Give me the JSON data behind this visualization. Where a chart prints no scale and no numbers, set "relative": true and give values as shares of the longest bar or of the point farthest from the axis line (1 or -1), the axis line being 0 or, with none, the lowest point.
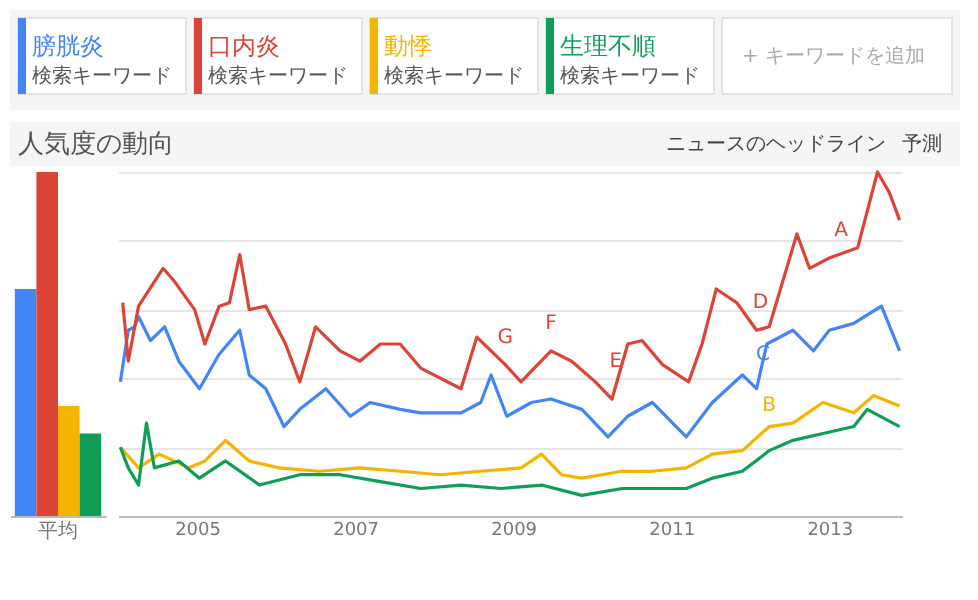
{
  "chart_data": [
    {
      "type": "bar",
      "relative": true,
      "categories": [
        "平均"
      ],
      "series": [
        {
          "color": "#4285f4",
          "values": [
            0.66
          ]
        },
        {
          "color": "#db4437",
          "values": [
            1
          ]
        },
        {
          "color": "#f4b400",
          "values": [
            0.32
          ]
        },
        {
          "color": "#0f9d58",
          "values": [
            0.24
          ]
        }
      ]
    },
    {
      "type": "line",
      "relative": true,
      "title": "人気度の動向",
      "legend": "top",
      "grid": "y",
      "xlim": [
        2004.0,
        2013.92
      ],
      "xticks": [
        2005,
        2007,
        2009,
        2011,
        2013
      ],
      "series": [
        {
          "name": "膀胱炎",
          "color": "#4285f4",
          "x": [
            2004.03,
            2004.13,
            2004.21,
            2004.26,
            2004.41,
            2004.59,
            2004.77,
            2005.03,
            2005.28,
            2005.54,
            2005.66,
            2005.87,
            2006.1,
            2006.3,
            2006.63,
            2006.94,
            2007.19,
            2007.57,
            2007.83,
            2008.34,
            2008.59,
            2008.72,
            2008.92,
            2009.23,
            2009.48,
            2009.87,
            2010.2,
            2010.45,
            2010.76,
            2011.19,
            2011.52,
            2011.9,
            2012.08,
            2012.21,
            2012.54,
            2012.8,
            2013.0,
            2013.31,
            2013.66,
            2013.89
          ],
          "values": [
            0.39,
            0.54,
            0.55,
            0.58,
            0.51,
            0.55,
            0.45,
            0.37,
            0.47,
            0.54,
            0.41,
            0.37,
            0.26,
            0.31,
            0.37,
            0.29,
            0.33,
            0.31,
            0.3,
            0.3,
            0.33,
            0.41,
            0.29,
            0.33,
            0.34,
            0.31,
            0.23,
            0.29,
            0.33,
            0.23,
            0.33,
            0.41,
            0.37,
            0.5,
            0.54,
            0.48,
            0.54,
            0.56,
            0.61,
            0.48
          ]
        },
        {
          "name": "口内炎",
          "color": "#db4437",
          "x": [
            2004.06,
            2004.13,
            2004.26,
            2004.57,
            2004.72,
            2004.97,
            2005.1,
            2005.28,
            2005.41,
            2005.54,
            2005.66,
            2005.87,
            2006.12,
            2006.3,
            2006.5,
            2006.81,
            2007.06,
            2007.32,
            2007.57,
            2007.83,
            2008.34,
            2008.54,
            2008.9,
            2009.1,
            2009.31,
            2009.48,
            2009.74,
            2010.04,
            2010.25,
            2010.45,
            2010.63,
            2010.89,
            2011.22,
            2011.39,
            2011.57,
            2011.83,
            2012.08,
            2012.24,
            2012.59,
            2012.75,
            2013.0,
            2013.36,
            2013.61,
            2013.76,
            2013.89
          ],
          "values": [
            0.62,
            0.45,
            0.61,
            0.72,
            0.68,
            0.6,
            0.5,
            0.61,
            0.62,
            0.76,
            0.6,
            0.61,
            0.5,
            0.39,
            0.55,
            0.48,
            0.45,
            0.5,
            0.5,
            0.43,
            0.37,
            0.52,
            0.44,
            0.39,
            0.44,
            0.48,
            0.45,
            0.39,
            0.34,
            0.5,
            0.51,
            0.44,
            0.39,
            0.5,
            0.66,
            0.62,
            0.54,
            0.55,
            0.82,
            0.72,
            0.75,
            0.78,
            1.0,
            0.94,
            0.86
          ]
        },
        {
          "name": "動悸",
          "color": "#f4b400",
          "x": [
            2004.03,
            2004.26,
            2004.52,
            2004.9,
            2005.1,
            2005.36,
            2005.66,
            2006.04,
            2006.55,
            2007.06,
            2007.57,
            2008.08,
            2008.59,
            2009.1,
            2009.36,
            2009.61,
            2009.87,
            2010.38,
            2010.76,
            2011.19,
            2011.52,
            2011.9,
            2012.24,
            2012.54,
            2012.92,
            2013.31,
            2013.56,
            2013.89
          ],
          "values": [
            0.2,
            0.14,
            0.18,
            0.14,
            0.16,
            0.22,
            0.16,
            0.14,
            0.13,
            0.14,
            0.13,
            0.12,
            0.13,
            0.14,
            0.18,
            0.12,
            0.11,
            0.13,
            0.13,
            0.14,
            0.18,
            0.19,
            0.26,
            0.27,
            0.33,
            0.3,
            0.35,
            0.32
          ]
        },
        {
          "name": "生理不順",
          "color": "#0f9d58",
          "x": [
            2004.03,
            2004.13,
            2004.26,
            2004.36,
            2004.46,
            2004.77,
            2005.03,
            2005.36,
            2005.79,
            2006.3,
            2006.81,
            2007.32,
            2007.83,
            2008.34,
            2008.85,
            2009.36,
            2009.87,
            2010.38,
            2010.76,
            2011.19,
            2011.52,
            2011.9,
            2012.24,
            2012.54,
            2012.92,
            2013.31,
            2013.48,
            2013.89
          ],
          "values": [
            0.2,
            0.14,
            0.09,
            0.27,
            0.14,
            0.16,
            0.11,
            0.16,
            0.09,
            0.12,
            0.12,
            0.1,
            0.08,
            0.09,
            0.08,
            0.09,
            0.06,
            0.08,
            0.08,
            0.08,
            0.11,
            0.13,
            0.19,
            0.22,
            0.24,
            0.26,
            0.31,
            0.26
          ]
        }
      ],
      "annotations": [
        {
          "text": "A",
          "x": 2013.15,
          "y": 0.75
        },
        {
          "text": "B",
          "x": 2012.24,
          "y": 0.24
        },
        {
          "text": "C",
          "x": 2012.16,
          "y": 0.39
        },
        {
          "text": "D",
          "x": 2012.13,
          "y": 0.54
        },
        {
          "text": "E",
          "x": 2010.3,
          "y": 0.37
        },
        {
          "text": "F",
          "x": 2009.48,
          "y": 0.48
        },
        {
          "text": "G",
          "x": 2008.9,
          "y": 0.44
        },
        "検索キーワード",
        "検索キーワード",
        "検索キーワード",
        "検索キーワード",
        "+ キーワードを追加",
        "ニュースのヘッドライン",
        "予測"
      ]
    }
  ]
}
